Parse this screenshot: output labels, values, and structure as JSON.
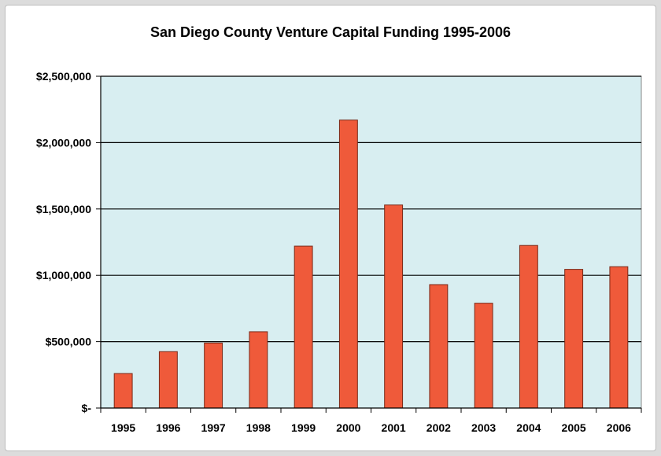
{
  "chart_data": {
    "type": "bar",
    "title": "San Diego County Venture Capital Funding 1995-2006",
    "xlabel": "",
    "ylabel": "",
    "categories": [
      "1995",
      "1996",
      "1997",
      "1998",
      "1999",
      "2000",
      "2001",
      "2002",
      "2003",
      "2004",
      "2005",
      "2006"
    ],
    "values": [
      260000,
      425000,
      490000,
      575000,
      1220000,
      2170000,
      1530000,
      930000,
      790000,
      1225000,
      1045000,
      1065000
    ],
    "ylim": [
      0,
      2500000
    ],
    "yticks": [
      0,
      500000,
      1000000,
      1500000,
      2000000,
      2500000
    ],
    "ytick_labels": [
      "$-",
      "$500,000",
      "$1,000,000",
      "$1,500,000",
      "$2,000,000",
      "$2,500,000"
    ],
    "grid": true,
    "legend": "none",
    "colors": {
      "bar": "#ef5a3a",
      "bar_stroke": "#7a2a18",
      "plot_background": "#d8eef1",
      "gridline": "#000000"
    }
  }
}
